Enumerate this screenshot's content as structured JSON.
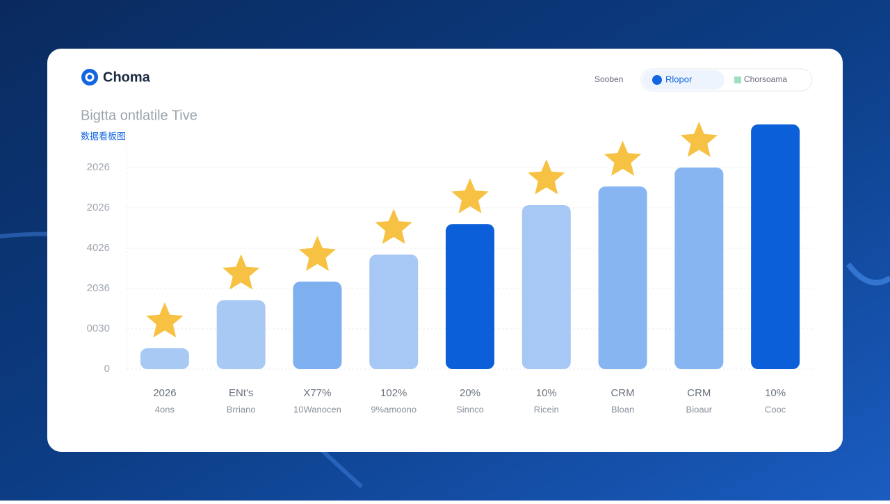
{
  "header": {
    "logo": "Choma",
    "tabs": [
      "Sooben",
      "Rlopor",
      "Chorsoama"
    ],
    "active_tab": 1
  },
  "chart_data": {
    "type": "bar",
    "title": "Bigtta ontlatile Tive",
    "subtitle": "数据看板图",
    "categories": [
      "2026",
      "ENt's",
      "X77%",
      "102%",
      "20%",
      "10%",
      "CRM",
      "CRM",
      "10%"
    ],
    "sublabels": [
      "4ons",
      "Brriano",
      "10Wanocen",
      "9%amoono",
      "Sinnco",
      "Ricein",
      "Bloan",
      "Bioaur",
      "Cooc"
    ],
    "values": [
      0.52,
      1.71,
      2.17,
      2.84,
      3.6,
      4.07,
      4.53,
      5.0,
      6.07
    ],
    "colors": [
      "#a9c9f5",
      "#a9c9f5",
      "#7eb0f0",
      "#a7c8f4",
      "#0b5fd8",
      "#a7c8f4",
      "#86b5f2",
      "#86b5f2",
      "#0b5fd8"
    ],
    "stars": [
      true,
      true,
      true,
      true,
      true,
      true,
      true,
      true,
      false
    ],
    "star_color": "#f7c244",
    "ylim": [
      0,
      6.2
    ],
    "yticks": [
      0,
      {
        "value": 1,
        "label": "0030"
      },
      {
        "value": 2,
        "label": "2036"
      },
      {
        "value": 3,
        "label": "4026"
      },
      {
        "value": 4,
        "label": "2026"
      },
      {
        "value": 5,
        "label": "2026"
      }
    ],
    "grid": true
  }
}
